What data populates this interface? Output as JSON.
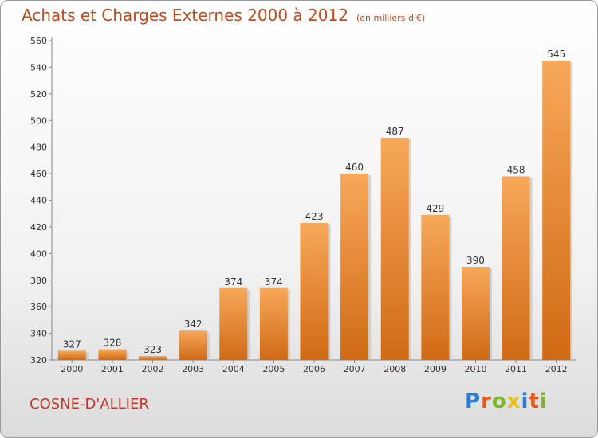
{
  "chart_data": {
    "type": "bar",
    "title": "Achats et Charges Externes 2000 à 2012",
    "subtitle": "(en milliers d'€)",
    "xlabel": "",
    "ylabel": "",
    "categories": [
      "2000",
      "2001",
      "2002",
      "2003",
      "2004",
      "2005",
      "2006",
      "2007",
      "2008",
      "2009",
      "2010",
      "2011",
      "2012"
    ],
    "values": [
      327,
      328,
      323,
      342,
      374,
      374,
      423,
      460,
      487,
      429,
      390,
      458,
      545
    ],
    "ylim": [
      320,
      560
    ],
    "yticks": [
      320,
      340,
      360,
      380,
      400,
      420,
      440,
      460,
      480,
      500,
      520,
      540,
      560
    ],
    "grid": false,
    "bar_color_top": "#f7a85a",
    "bar_color_bottom": "#d06a14"
  },
  "commune": "COSNE-D'ALLIER",
  "logo": {
    "letters": [
      "P",
      "r",
      "o",
      "x",
      "i",
      "t",
      "i"
    ],
    "colors": [
      "#2a7fd4",
      "#e85a1a",
      "#7ab82a",
      "#e8c21a",
      "#2a7fd4",
      "#e85a1a",
      "#7ab82a"
    ]
  }
}
